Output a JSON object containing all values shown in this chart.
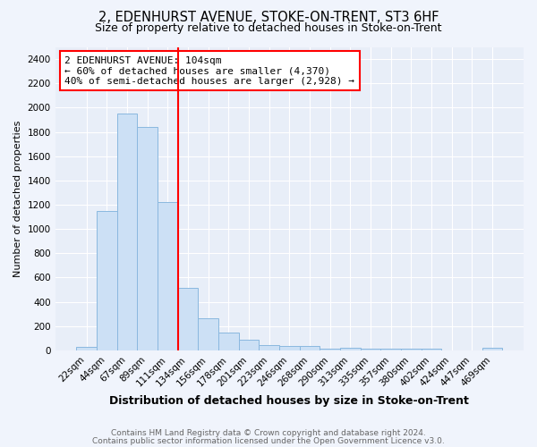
{
  "title": "2, EDENHURST AVENUE, STOKE-ON-TRENT, ST3 6HF",
  "subtitle": "Size of property relative to detached houses in Stoke-on-Trent",
  "xlabel": "Distribution of detached houses by size in Stoke-on-Trent",
  "ylabel": "Number of detached properties",
  "bar_labels": [
    "22sqm",
    "44sqm",
    "67sqm",
    "89sqm",
    "111sqm",
    "134sqm",
    "156sqm",
    "178sqm",
    "201sqm",
    "223sqm",
    "246sqm",
    "268sqm",
    "290sqm",
    "313sqm",
    "335sqm",
    "357sqm",
    "380sqm",
    "402sqm",
    "424sqm",
    "447sqm",
    "469sqm"
  ],
  "bar_values": [
    30,
    1150,
    1950,
    1840,
    1220,
    515,
    265,
    150,
    85,
    45,
    40,
    35,
    15,
    20,
    15,
    15,
    15,
    15,
    0,
    0,
    20
  ],
  "bar_color": "#cce0f5",
  "bar_edge_color": "#8ab8df",
  "vline_x": 4.5,
  "vline_color": "red",
  "annotation_text": "2 EDENHURST AVENUE: 104sqm\n← 60% of detached houses are smaller (4,370)\n40% of semi-detached houses are larger (2,928) →",
  "annotation_box_color": "white",
  "annotation_box_edge": "red",
  "ylim": [
    0,
    2500
  ],
  "yticks": [
    0,
    200,
    400,
    600,
    800,
    1000,
    1200,
    1400,
    1600,
    1800,
    2000,
    2200,
    2400
  ],
  "footer1": "Contains HM Land Registry data © Crown copyright and database right 2024.",
  "footer2": "Contains public sector information licensed under the Open Government Licence v3.0.",
  "bg_color": "#f0f4fc",
  "plot_bg_color": "#e8eef8",
  "title_fontsize": 10.5,
  "subtitle_fontsize": 9,
  "xlabel_fontsize": 9,
  "ylabel_fontsize": 8,
  "tick_fontsize": 7.5,
  "footer_fontsize": 6.5
}
